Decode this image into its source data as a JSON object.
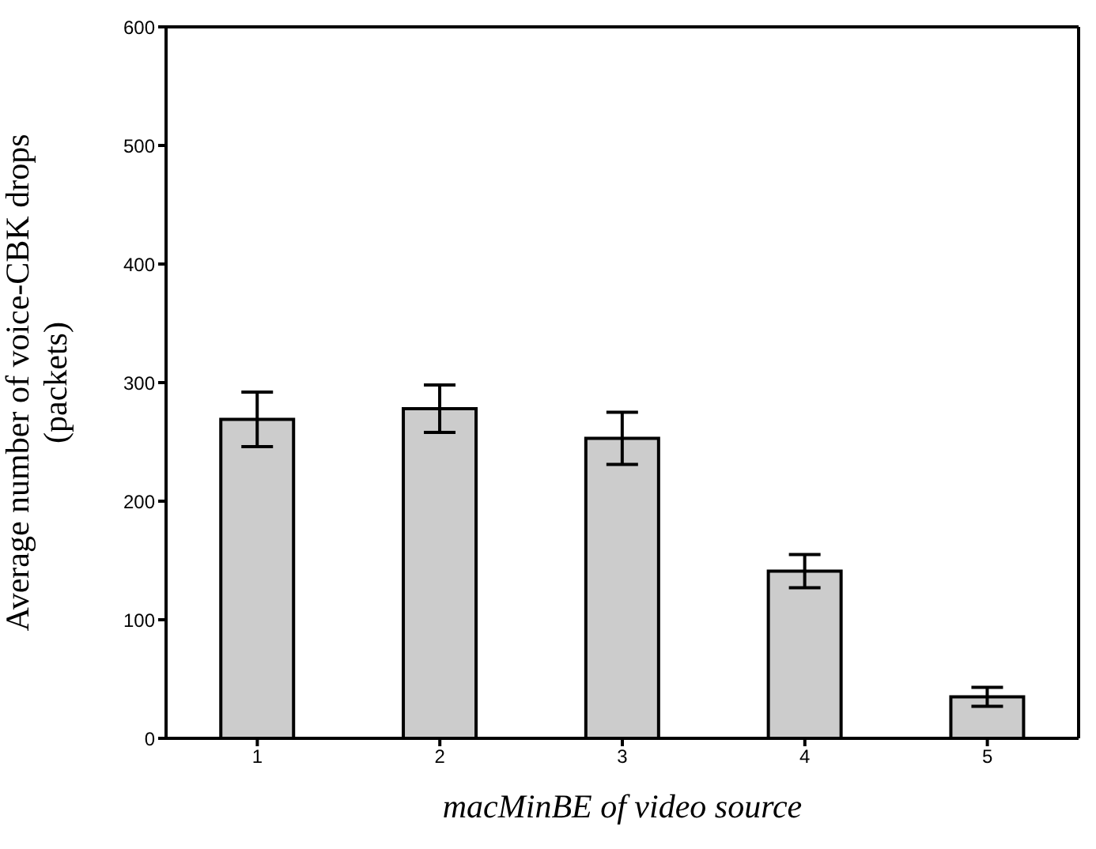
{
  "chart_data": {
    "type": "bar",
    "xlabel": "macMinBE of video source",
    "ylabel": "Average number of voice-CBK drops\n(packets)",
    "categories": [
      "1",
      "2",
      "3",
      "4",
      "5"
    ],
    "values": [
      269,
      278,
      253,
      141,
      35
    ],
    "errors": [
      23,
      20,
      22,
      14,
      8
    ],
    "color": "#cccccc",
    "ylim": [
      0,
      600
    ],
    "yticks": [
      0,
      100,
      200,
      300,
      400,
      500,
      600
    ]
  }
}
